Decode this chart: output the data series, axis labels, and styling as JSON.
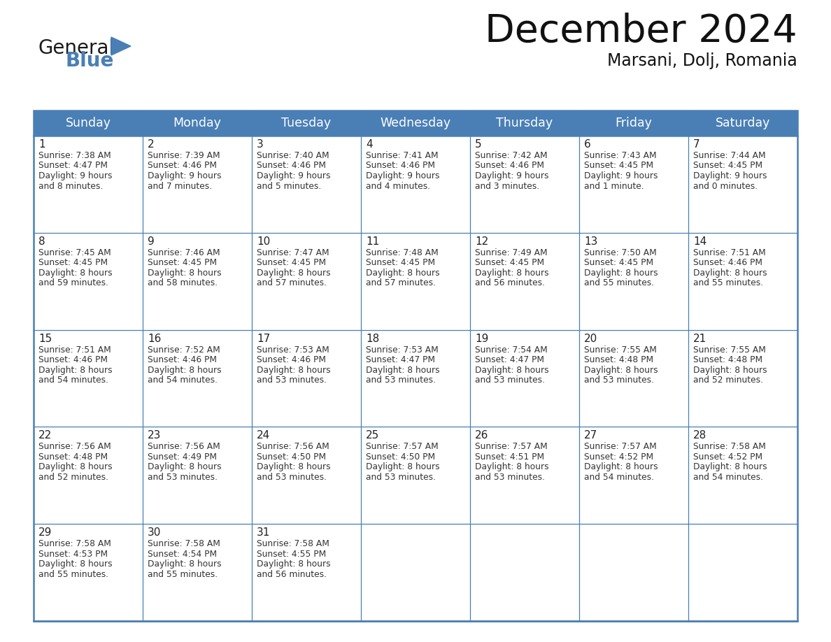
{
  "title": "December 2024",
  "subtitle": "Marsani, Dolj, Romania",
  "header_bg": "#4a7fb5",
  "header_text": "#ffffff",
  "border_color": "#4a7fb5",
  "day_names": [
    "Sunday",
    "Monday",
    "Tuesday",
    "Wednesday",
    "Thursday",
    "Friday",
    "Saturday"
  ],
  "weeks": [
    [
      {
        "day": "1",
        "sunrise": "7:38 AM",
        "sunset": "4:47 PM",
        "daylight": "9 hours",
        "daylight2": "and 8 minutes."
      },
      {
        "day": "2",
        "sunrise": "7:39 AM",
        "sunset": "4:46 PM",
        "daylight": "9 hours",
        "daylight2": "and 7 minutes."
      },
      {
        "day": "3",
        "sunrise": "7:40 AM",
        "sunset": "4:46 PM",
        "daylight": "9 hours",
        "daylight2": "and 5 minutes."
      },
      {
        "day": "4",
        "sunrise": "7:41 AM",
        "sunset": "4:46 PM",
        "daylight": "9 hours",
        "daylight2": "and 4 minutes."
      },
      {
        "day": "5",
        "sunrise": "7:42 AM",
        "sunset": "4:46 PM",
        "daylight": "9 hours",
        "daylight2": "and 3 minutes."
      },
      {
        "day": "6",
        "sunrise": "7:43 AM",
        "sunset": "4:45 PM",
        "daylight": "9 hours",
        "daylight2": "and 1 minute."
      },
      {
        "day": "7",
        "sunrise": "7:44 AM",
        "sunset": "4:45 PM",
        "daylight": "9 hours",
        "daylight2": "and 0 minutes."
      }
    ],
    [
      {
        "day": "8",
        "sunrise": "7:45 AM",
        "sunset": "4:45 PM",
        "daylight": "8 hours",
        "daylight2": "and 59 minutes."
      },
      {
        "day": "9",
        "sunrise": "7:46 AM",
        "sunset": "4:45 PM",
        "daylight": "8 hours",
        "daylight2": "and 58 minutes."
      },
      {
        "day": "10",
        "sunrise": "7:47 AM",
        "sunset": "4:45 PM",
        "daylight": "8 hours",
        "daylight2": "and 57 minutes."
      },
      {
        "day": "11",
        "sunrise": "7:48 AM",
        "sunset": "4:45 PM",
        "daylight": "8 hours",
        "daylight2": "and 57 minutes."
      },
      {
        "day": "12",
        "sunrise": "7:49 AM",
        "sunset": "4:45 PM",
        "daylight": "8 hours",
        "daylight2": "and 56 minutes."
      },
      {
        "day": "13",
        "sunrise": "7:50 AM",
        "sunset": "4:45 PM",
        "daylight": "8 hours",
        "daylight2": "and 55 minutes."
      },
      {
        "day": "14",
        "sunrise": "7:51 AM",
        "sunset": "4:46 PM",
        "daylight": "8 hours",
        "daylight2": "and 55 minutes."
      }
    ],
    [
      {
        "day": "15",
        "sunrise": "7:51 AM",
        "sunset": "4:46 PM",
        "daylight": "8 hours",
        "daylight2": "and 54 minutes."
      },
      {
        "day": "16",
        "sunrise": "7:52 AM",
        "sunset": "4:46 PM",
        "daylight": "8 hours",
        "daylight2": "and 54 minutes."
      },
      {
        "day": "17",
        "sunrise": "7:53 AM",
        "sunset": "4:46 PM",
        "daylight": "8 hours",
        "daylight2": "and 53 minutes."
      },
      {
        "day": "18",
        "sunrise": "7:53 AM",
        "sunset": "4:47 PM",
        "daylight": "8 hours",
        "daylight2": "and 53 minutes."
      },
      {
        "day": "19",
        "sunrise": "7:54 AM",
        "sunset": "4:47 PM",
        "daylight": "8 hours",
        "daylight2": "and 53 minutes."
      },
      {
        "day": "20",
        "sunrise": "7:55 AM",
        "sunset": "4:48 PM",
        "daylight": "8 hours",
        "daylight2": "and 53 minutes."
      },
      {
        "day": "21",
        "sunrise": "7:55 AM",
        "sunset": "4:48 PM",
        "daylight": "8 hours",
        "daylight2": "and 52 minutes."
      }
    ],
    [
      {
        "day": "22",
        "sunrise": "7:56 AM",
        "sunset": "4:48 PM",
        "daylight": "8 hours",
        "daylight2": "and 52 minutes."
      },
      {
        "day": "23",
        "sunrise": "7:56 AM",
        "sunset": "4:49 PM",
        "daylight": "8 hours",
        "daylight2": "and 53 minutes."
      },
      {
        "day": "24",
        "sunrise": "7:56 AM",
        "sunset": "4:50 PM",
        "daylight": "8 hours",
        "daylight2": "and 53 minutes."
      },
      {
        "day": "25",
        "sunrise": "7:57 AM",
        "sunset": "4:50 PM",
        "daylight": "8 hours",
        "daylight2": "and 53 minutes."
      },
      {
        "day": "26",
        "sunrise": "7:57 AM",
        "sunset": "4:51 PM",
        "daylight": "8 hours",
        "daylight2": "and 53 minutes."
      },
      {
        "day": "27",
        "sunrise": "7:57 AM",
        "sunset": "4:52 PM",
        "daylight": "8 hours",
        "daylight2": "and 54 minutes."
      },
      {
        "day": "28",
        "sunrise": "7:58 AM",
        "sunset": "4:52 PM",
        "daylight": "8 hours",
        "daylight2": "and 54 minutes."
      }
    ],
    [
      {
        "day": "29",
        "sunrise": "7:58 AM",
        "sunset": "4:53 PM",
        "daylight": "8 hours",
        "daylight2": "and 55 minutes."
      },
      {
        "day": "30",
        "sunrise": "7:58 AM",
        "sunset": "4:54 PM",
        "daylight": "8 hours",
        "daylight2": "and 55 minutes."
      },
      {
        "day": "31",
        "sunrise": "7:58 AM",
        "sunset": "4:55 PM",
        "daylight": "8 hours",
        "daylight2": "and 56 minutes."
      },
      null,
      null,
      null,
      null
    ]
  ],
  "fig_width": 11.88,
  "fig_height": 9.18,
  "dpi": 100
}
